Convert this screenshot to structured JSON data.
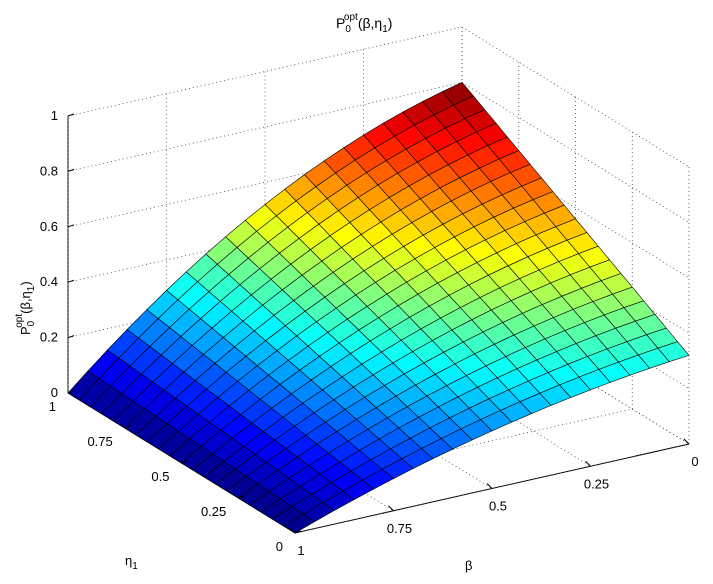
{
  "chart_data": {
    "type": "surface",
    "title_main": "P",
    "title_sub": "0",
    "title_sup": "opt",
    "title_args": "(β,η",
    "title_args_sub": "1",
    "title_close": ")",
    "xlabel": "β",
    "ylabel": "η",
    "ylabel_sub": "1",
    "zlabel_main": "P",
    "zlabel_sub": "0",
    "zlabel_sup": "opt",
    "zlabel_args": "(β,η",
    "zlabel_args_sub": "1",
    "zlabel_close": ")",
    "x_range": [
      0,
      1
    ],
    "y_range": [
      0,
      1
    ],
    "zlim": [
      0,
      1
    ],
    "x_ticks": [
      {
        "value": 0,
        "label": "0"
      },
      {
        "value": 0.25,
        "label": "0.25"
      },
      {
        "value": 0.5,
        "label": "0.5"
      },
      {
        "value": 0.75,
        "label": "0.75"
      },
      {
        "value": 1,
        "label": "1"
      }
    ],
    "y_ticks": [
      {
        "value": 0,
        "label": "0"
      },
      {
        "value": 0.25,
        "label": "0.25"
      },
      {
        "value": 0.5,
        "label": "0.5"
      },
      {
        "value": 0.75,
        "label": "0.75"
      },
      {
        "value": 1,
        "label": "1"
      }
    ],
    "z_ticks": [
      {
        "value": 0,
        "label": "0"
      },
      {
        "value": 0.2,
        "label": "0.2"
      },
      {
        "value": 0.4,
        "label": "0.4"
      },
      {
        "value": 0.6,
        "label": "0.6"
      },
      {
        "value": 0.8,
        "label": "0.8"
      },
      {
        "value": 1,
        "label": "1"
      }
    ],
    "grid": true,
    "colormap": "jet",
    "corner_values": [
      {
        "beta": 0,
        "eta1": 1,
        "z": 0.8
      },
      {
        "beta": 0,
        "eta1": 0,
        "z": 0.32
      },
      {
        "beta": 1,
        "eta1": 1,
        "z": 0.0
      },
      {
        "beta": 1,
        "eta1": 0,
        "z": 0.0
      }
    ],
    "grid_resolution": 20
  }
}
